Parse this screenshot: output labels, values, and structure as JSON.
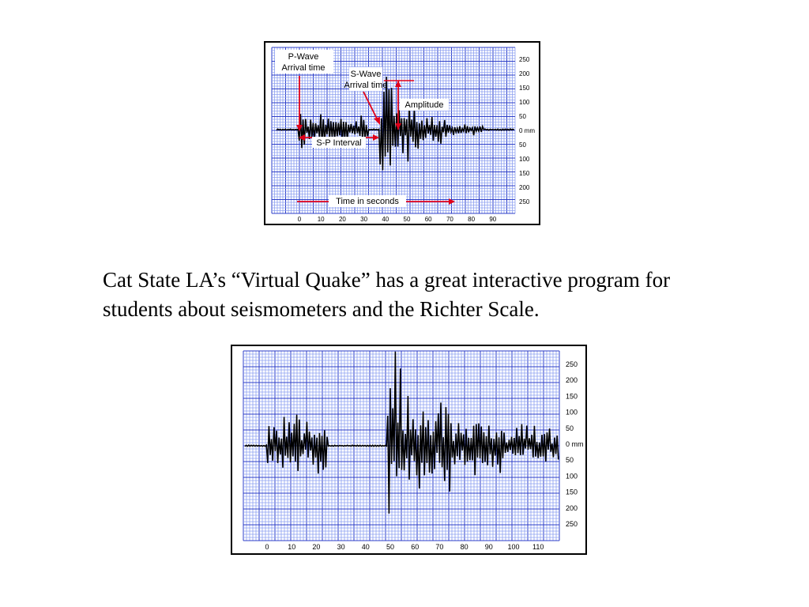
{
  "caption": "Cat State LA’s “Virtual Quake” has a great interactive program for students about seismometers and the Richter Scale.",
  "colors": {
    "grid_fine": "#8ea0f0",
    "grid_major": "#2d3fc8",
    "paper": "#ffffff",
    "trace": "#000000",
    "annotation": "#e0001a"
  },
  "figures": [
    {
      "id": "annotated-seismogram",
      "x_ticks": [
        "0",
        "10",
        "20",
        "30",
        "40",
        "50",
        "60",
        "70",
        "80",
        "90"
      ],
      "y_ticks": [
        "250",
        "200",
        "150",
        "100",
        "50",
        "0 mm",
        "50",
        "100",
        "150",
        "200",
        "250"
      ],
      "annotations": {
        "p_wave": [
          "P-Wave",
          "Arrival time"
        ],
        "s_wave": [
          "S-Wave",
          "Arrival time"
        ],
        "amplitude": "Amplitude",
        "sp_interval": "S-P Interval",
        "time_axis": "Time in seconds"
      }
    },
    {
      "id": "plain-seismogram",
      "x_ticks": [
        "0",
        "10",
        "20",
        "30",
        "40",
        "50",
        "60",
        "70",
        "80",
        "90",
        "100",
        "110"
      ],
      "y_ticks": [
        "250",
        "200",
        "150",
        "100",
        "50",
        "0 mm",
        "50",
        "100",
        "150",
        "200",
        "250"
      ]
    }
  ]
}
